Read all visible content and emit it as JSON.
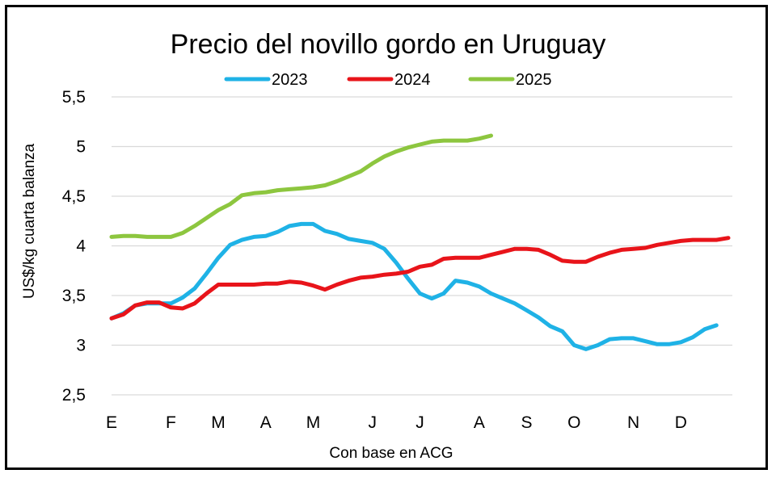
{
  "chart_data": {
    "type": "line",
    "title": "Precio del novillo gordo en Uruguay",
    "xlabel": "Con base en ACG",
    "ylabel": "US$/kg cuarta balanza",
    "ylim": [
      2.5,
      5.5
    ],
    "yticks": [
      {
        "value": 2.5,
        "label": "2,5"
      },
      {
        "value": 3,
        "label": "3"
      },
      {
        "value": 3.5,
        "label": "3,5"
      },
      {
        "value": 4,
        "label": "4"
      },
      {
        "value": 4.5,
        "label": "4,5"
      },
      {
        "value": 5,
        "label": "5"
      },
      {
        "value": 5.5,
        "label": "5,5"
      }
    ],
    "xlim": [
      0,
      51
    ],
    "xticks": [
      {
        "value": 0,
        "label": "E"
      },
      {
        "value": 5,
        "label": "F"
      },
      {
        "value": 9,
        "label": "M"
      },
      {
        "value": 13,
        "label": "A"
      },
      {
        "value": 17,
        "label": "M"
      },
      {
        "value": 22,
        "label": "J"
      },
      {
        "value": 26,
        "label": "J"
      },
      {
        "value": 31,
        "label": "A"
      },
      {
        "value": 35,
        "label": "S"
      },
      {
        "value": 39,
        "label": "O"
      },
      {
        "value": 44,
        "label": "N"
      },
      {
        "value": 48,
        "label": "D"
      }
    ],
    "grid": true,
    "legend": "top",
    "series": [
      {
        "name": "2023",
        "color": "#1fb2e6",
        "points": [
          [
            0,
            3.27
          ],
          [
            1,
            3.32
          ],
          [
            2,
            3.4
          ],
          [
            3,
            3.42
          ],
          [
            4,
            3.42
          ],
          [
            5,
            3.42
          ],
          [
            6,
            3.48
          ],
          [
            7,
            3.57
          ],
          [
            8,
            3.72
          ],
          [
            9,
            3.88
          ],
          [
            10,
            4.01
          ],
          [
            11,
            4.06
          ],
          [
            12,
            4.09
          ],
          [
            13,
            4.1
          ],
          [
            14,
            4.14
          ],
          [
            15,
            4.2
          ],
          [
            16,
            4.22
          ],
          [
            17,
            4.22
          ],
          [
            18,
            4.15
          ],
          [
            19,
            4.12
          ],
          [
            20,
            4.07
          ],
          [
            21,
            4.05
          ],
          [
            22,
            4.03
          ],
          [
            23,
            3.97
          ],
          [
            24,
            3.83
          ],
          [
            25,
            3.67
          ],
          [
            26,
            3.52
          ],
          [
            27,
            3.47
          ],
          [
            28,
            3.52
          ],
          [
            29,
            3.65
          ],
          [
            30,
            3.63
          ],
          [
            31,
            3.59
          ],
          [
            32,
            3.52
          ],
          [
            33,
            3.47
          ],
          [
            34,
            3.42
          ],
          [
            35,
            3.35
          ],
          [
            36,
            3.28
          ],
          [
            37,
            3.19
          ],
          [
            38,
            3.14
          ],
          [
            39,
            3.0
          ],
          [
            40,
            2.96
          ],
          [
            41,
            3.0
          ],
          [
            42,
            3.06
          ],
          [
            43,
            3.07
          ],
          [
            44,
            3.07
          ],
          [
            45,
            3.04
          ],
          [
            46,
            3.01
          ],
          [
            47,
            3.01
          ],
          [
            48,
            3.03
          ],
          [
            49,
            3.08
          ],
          [
            50,
            3.16
          ],
          [
            51,
            3.2
          ]
        ]
      },
      {
        "name": "2024",
        "color": "#e8141a",
        "points": [
          [
            0,
            3.27
          ],
          [
            1,
            3.31
          ],
          [
            2,
            3.4
          ],
          [
            3,
            3.43
          ],
          [
            4,
            3.43
          ],
          [
            5,
            3.38
          ],
          [
            6,
            3.37
          ],
          [
            7,
            3.42
          ],
          [
            8,
            3.52
          ],
          [
            9,
            3.61
          ],
          [
            10,
            3.61
          ],
          [
            11,
            3.61
          ],
          [
            12,
            3.61
          ],
          [
            13,
            3.62
          ],
          [
            14,
            3.62
          ],
          [
            15,
            3.64
          ],
          [
            16,
            3.63
          ],
          [
            17,
            3.6
          ],
          [
            18,
            3.56
          ],
          [
            19,
            3.61
          ],
          [
            20,
            3.65
          ],
          [
            21,
            3.68
          ],
          [
            22,
            3.69
          ],
          [
            23,
            3.71
          ],
          [
            24,
            3.72
          ],
          [
            25,
            3.74
          ],
          [
            26,
            3.79
          ],
          [
            27,
            3.81
          ],
          [
            28,
            3.87
          ],
          [
            29,
            3.88
          ],
          [
            30,
            3.88
          ],
          [
            31,
            3.88
          ],
          [
            32,
            3.91
          ],
          [
            33,
            3.94
          ],
          [
            34,
            3.97
          ],
          [
            35,
            3.97
          ],
          [
            36,
            3.96
          ],
          [
            37,
            3.91
          ],
          [
            38,
            3.85
          ],
          [
            39,
            3.84
          ],
          [
            40,
            3.84
          ],
          [
            41,
            3.89
          ],
          [
            42,
            3.93
          ],
          [
            43,
            3.96
          ],
          [
            44,
            3.97
          ],
          [
            45,
            3.98
          ],
          [
            46,
            4.01
          ],
          [
            47,
            4.03
          ],
          [
            48,
            4.05
          ],
          [
            49,
            4.06
          ],
          [
            50,
            4.06
          ],
          [
            51,
            4.06
          ],
          [
            52,
            4.08
          ]
        ]
      },
      {
        "name": "2025",
        "color": "#8dc63f",
        "points": [
          [
            0,
            4.09
          ],
          [
            1,
            4.1
          ],
          [
            2,
            4.1
          ],
          [
            3,
            4.09
          ],
          [
            4,
            4.09
          ],
          [
            5,
            4.09
          ],
          [
            6,
            4.13
          ],
          [
            7,
            4.2
          ],
          [
            8,
            4.28
          ],
          [
            9,
            4.36
          ],
          [
            10,
            4.42
          ],
          [
            11,
            4.51
          ],
          [
            12,
            4.53
          ],
          [
            13,
            4.54
          ],
          [
            14,
            4.56
          ],
          [
            15,
            4.57
          ],
          [
            16,
            4.58
          ],
          [
            17,
            4.59
          ],
          [
            18,
            4.61
          ],
          [
            19,
            4.65
          ],
          [
            20,
            4.7
          ],
          [
            21,
            4.75
          ],
          [
            22,
            4.83
          ],
          [
            23,
            4.9
          ],
          [
            24,
            4.95
          ],
          [
            25,
            4.99
          ],
          [
            26,
            5.02
          ],
          [
            27,
            5.05
          ],
          [
            28,
            5.06
          ],
          [
            29,
            5.06
          ],
          [
            30,
            5.06
          ],
          [
            31,
            5.08
          ],
          [
            32,
            5.11
          ]
        ]
      }
    ]
  }
}
